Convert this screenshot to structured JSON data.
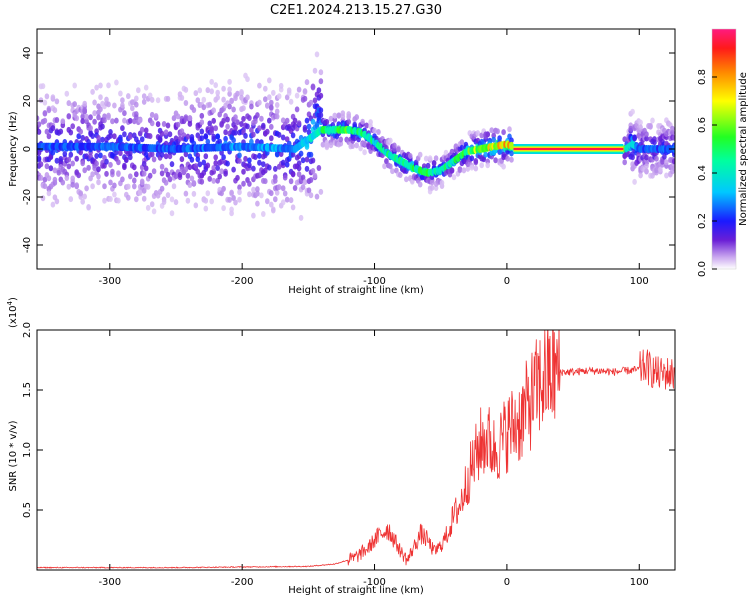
{
  "title": "C2E1.2024.213.15.27.G30",
  "chart_data": [
    {
      "type": "heatmap",
      "name": "spectrogram",
      "xlabel": "Height of straight line (km)",
      "ylabel": "Frequency (Hz)",
      "xlim": [
        -355,
        127
      ],
      "ylim": [
        -50,
        50
      ],
      "xticks": [
        -300,
        -200,
        -100,
        0,
        100
      ],
      "yticks": [
        -40,
        -20,
        0,
        20,
        40
      ],
      "colorbar": {
        "label": "Normalized spectral amplitude",
        "range": [
          0,
          1
        ],
        "ticks": [
          "0.0",
          "0.2",
          "0.4",
          "0.6",
          "0.8"
        ]
      },
      "ridge": {
        "x": [
          -355,
          -300,
          -250,
          -200,
          -160,
          -140,
          -120,
          -110,
          -100,
          -90,
          -80,
          -70,
          -60,
          -50,
          -40,
          -30,
          -20,
          -10,
          0,
          10,
          50,
          85,
          90,
          95,
          100,
          110,
          127
        ],
        "y": [
          1,
          1,
          0,
          1,
          0,
          8,
          8,
          7,
          3,
          -2,
          -5,
          -8,
          -10,
          -9,
          -5,
          -1,
          0,
          1,
          2,
          0,
          0,
          0,
          0,
          2,
          0,
          0,
          0
        ],
        "peak_amplitude": [
          0.25,
          0.25,
          0.25,
          0.3,
          0.3,
          0.5,
          0.55,
          0.5,
          0.45,
          0.45,
          0.45,
          0.5,
          0.5,
          0.45,
          0.5,
          0.55,
          0.7,
          0.75,
          0.8,
          0.9,
          0.9,
          0.9,
          0.5,
          0.4,
          0.25,
          0.25,
          0.25
        ]
      },
      "tone_band": {
        "x": [
          5,
          88
        ],
        "y": 0,
        "amplitude": 0.95
      }
    },
    {
      "type": "line",
      "name": "snr",
      "xlabel": "Height of straight line (km)",
      "ylabel": "SNR (10 * v/v)",
      "yexponent": "(x10",
      "yexponent_power": "4",
      "yexponent_close": ")",
      "xlim": [
        -355,
        127
      ],
      "ylim": [
        0,
        2.0
      ],
      "xticks": [
        -300,
        -200,
        -100,
        0,
        100
      ],
      "yticks": [
        "0.5",
        "1.0",
        "1.5",
        "2.0"
      ],
      "color": "#ee3333",
      "series": [
        {
          "x": [
            -355,
            -250,
            -150,
            -130,
            -115,
            -105,
            -100,
            -95,
            -90,
            -85,
            -80,
            -75,
            -70,
            -65,
            -60,
            -55,
            -50,
            -45,
            -40,
            -35,
            -30,
            -25,
            -20,
            -15,
            -10,
            -5,
            0,
            5,
            10,
            15,
            20,
            25,
            30,
            40,
            50,
            60,
            70,
            80,
            90,
            100,
            105,
            110,
            115,
            120,
            127
          ],
          "y": [
            0.02,
            0.02,
            0.03,
            0.05,
            0.1,
            0.18,
            0.25,
            0.3,
            0.35,
            0.25,
            0.15,
            0.08,
            0.2,
            0.3,
            0.25,
            0.15,
            0.2,
            0.3,
            0.45,
            0.55,
            0.75,
            0.9,
            1.05,
            1.1,
            1.0,
            1.05,
            1.15,
            1.2,
            1.25,
            1.35,
            1.45,
            1.55,
            1.62,
            1.65,
            1.65,
            1.66,
            1.66,
            1.65,
            1.66,
            1.67,
            1.7,
            1.66,
            1.63,
            1.64,
            1.63
          ]
        }
      ]
    }
  ]
}
